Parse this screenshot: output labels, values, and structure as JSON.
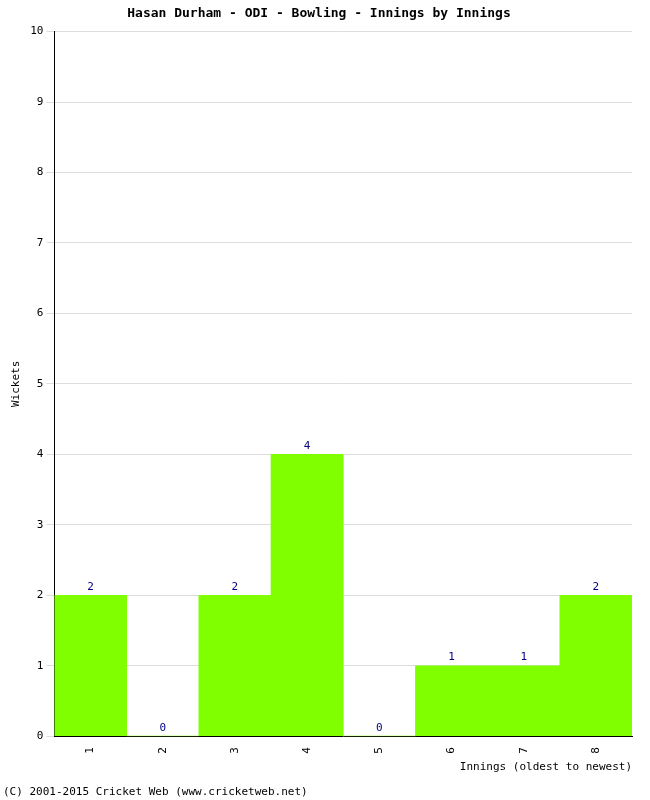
{
  "chart_data": {
    "type": "bar",
    "title": "Hasan Durham - ODI - Bowling - Innings by Innings",
    "x_label": "Innings (oldest to newest)",
    "y_label": "Wickets",
    "categories": [
      "1",
      "2",
      "3",
      "4",
      "5",
      "6",
      "7",
      "8"
    ],
    "values": [
      2,
      0,
      2,
      4,
      0,
      1,
      1,
      2
    ],
    "color": "#80ff00",
    "ylim": [
      0,
      10
    ],
    "yticks": [
      0,
      1,
      2,
      3,
      4,
      5,
      6,
      7,
      8,
      9,
      10
    ],
    "grid": true,
    "data_labels": true,
    "annotations": [
      "(C) 2001-2015 Cricket Web (www.cricketweb.net)"
    ]
  }
}
